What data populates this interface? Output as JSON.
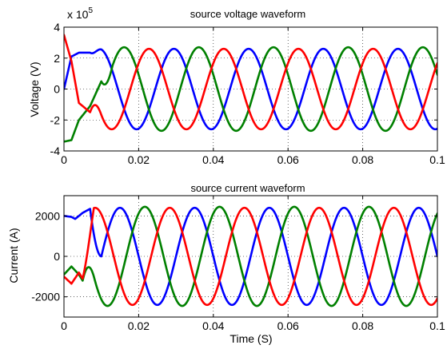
{
  "chart_data": [
    {
      "type": "line",
      "title": "source voltage waveform",
      "xlabel": "",
      "ylabel": "Voltage (V)",
      "y_multiplier_label": "x 10",
      "y_multiplier_exponent": "5",
      "xlim": [
        0,
        0.1
      ],
      "ylim": [
        -4,
        4
      ],
      "grid": true,
      "x_ticks": [
        0,
        0.02,
        0.04,
        0.06,
        0.08,
        0.1
      ],
      "x_tick_labels": [
        "0",
        "0.02",
        "0.04",
        "0.06",
        "0.08",
        "0.1"
      ],
      "y_ticks": [
        -4,
        -2,
        0,
        2,
        4
      ],
      "y_tick_labels": [
        "-4",
        "-2",
        "0",
        "2",
        "4"
      ],
      "series": [
        {
          "color": "#0000ff",
          "amplitude": 2.6,
          "frequency_hz": 50,
          "phase_deg": -80,
          "transient": [
            [
              0,
              0
            ],
            [
              0.002,
              2.1
            ],
            [
              0.004,
              2.35
            ],
            [
              0.007,
              2.35
            ]
          ]
        },
        {
          "color": "#008000",
          "amplitude": 2.7,
          "frequency_hz": 50,
          "phase_deg": 160,
          "transient": [
            [
              0,
              -3.4
            ],
            [
              0.002,
              -3.3
            ],
            [
              0.004,
              -2.0
            ],
            [
              0.007,
              -1.1
            ],
            [
              0.01,
              0.5
            ]
          ]
        },
        {
          "color": "#ff0000",
          "amplitude": 2.6,
          "frequency_hz": 50,
          "phase_deg": 40,
          "transient": [
            [
              0,
              3.5
            ],
            [
              0.002,
              1.8
            ],
            [
              0.004,
              -0.9
            ],
            [
              0.007,
              -1.5
            ]
          ]
        }
      ]
    },
    {
      "type": "line",
      "title": "source current waveform",
      "xlabel": "Time (S)",
      "ylabel": "Current (A)",
      "xlim": [
        0,
        0.1
      ],
      "ylim": [
        -3000,
        3000
      ],
      "grid": true,
      "x_ticks": [
        0,
        0.02,
        0.04,
        0.06,
        0.08,
        0.1
      ],
      "x_tick_labels": [
        "0",
        "0.02",
        "0.04",
        "0.06",
        "0.08",
        "0.1"
      ],
      "y_ticks": [
        -2000,
        0,
        2000
      ],
      "y_tick_labels": [
        "-2000",
        "0",
        "2000"
      ],
      "series": [
        {
          "color": "#0000ff",
          "amplitude": 2400,
          "frequency_hz": 50,
          "phase_deg": -180,
          "transient": [
            [
              0,
              2000
            ],
            [
              0.002,
              1950
            ],
            [
              0.003,
              1850
            ],
            [
              0.005,
              2150
            ],
            [
              0.007,
              2350
            ]
          ]
        },
        {
          "color": "#008000",
          "amplitude": 2450,
          "frequency_hz": 50,
          "phase_deg": 60,
          "transient": [
            [
              0,
              -900
            ],
            [
              0.002,
              -500
            ],
            [
              0.004,
              -900
            ],
            [
              0.005,
              -1200
            ]
          ]
        },
        {
          "color": "#ff0000",
          "amplitude": 2400,
          "frequency_hz": 50,
          "phase_deg": -60,
          "transient": [
            [
              0,
              -1000
            ],
            [
              0.002,
              -1350
            ],
            [
              0.004,
              -800
            ],
            [
              0.005,
              -1100
            ]
          ]
        }
      ]
    }
  ]
}
